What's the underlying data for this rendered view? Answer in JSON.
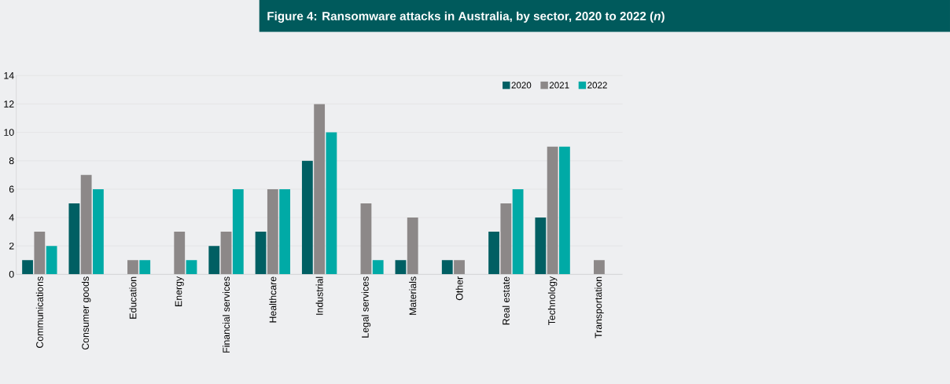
{
  "chart_data": {
    "type": "bar",
    "title": "Figure 4: Ransomware attacks in Australia, by sector, 2020 to 2022 (*n*)",
    "categories": [
      "Communications",
      "Consumer goods",
      "Education",
      "Energy",
      "Financial services",
      "Healthcare",
      "Industrial",
      "Legal services",
      "Materials",
      "Other",
      "Real estate",
      "Technology",
      "Transportation"
    ],
    "series": [
      {
        "name": "2020",
        "color": "#005f63",
        "values": [
          1,
          5,
          0,
          0,
          2,
          3,
          8,
          0,
          1,
          1,
          3,
          4,
          0
        ]
      },
      {
        "name": "2021",
        "color": "#8c8888",
        "values": [
          3,
          7,
          1,
          3,
          3,
          6,
          12,
          5,
          4,
          1,
          5,
          9,
          1
        ]
      },
      {
        "name": "2022",
        "color": "#00aaa6",
        "values": [
          2,
          6,
          1,
          1,
          6,
          6,
          10,
          1,
          0,
          0,
          6,
          9,
          0
        ]
      }
    ],
    "ylim": [
      0,
      14
    ],
    "yticks": [
      0,
      2,
      4,
      6,
      8,
      10,
      12,
      14
    ],
    "grid": "y",
    "legend": "top"
  }
}
